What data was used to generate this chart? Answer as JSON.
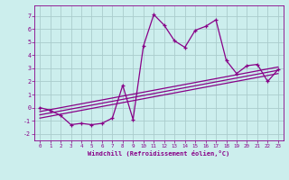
{
  "xlabel": "Windchill (Refroidissement éolien,°C)",
  "x": [
    0,
    1,
    2,
    3,
    4,
    5,
    6,
    7,
    8,
    9,
    10,
    11,
    12,
    13,
    14,
    15,
    16,
    17,
    18,
    19,
    20,
    21,
    22,
    23
  ],
  "y_main": [
    0.0,
    -0.2,
    -0.6,
    -1.3,
    -1.2,
    -1.3,
    -1.2,
    -0.8,
    1.7,
    -0.9,
    4.7,
    7.1,
    6.3,
    5.1,
    4.6,
    5.9,
    6.2,
    6.7,
    3.6,
    2.6,
    3.2,
    3.3,
    2.0,
    2.9
  ],
  "reg1_start": -0.8,
  "reg1_end": 2.6,
  "reg2_start": -0.55,
  "reg2_end": 2.85,
  "reg3_start": -0.3,
  "reg3_end": 3.1,
  "color": "#880088",
  "bg_color": "#cceeed",
  "grid_color": "#aacccc",
  "ylim": [
    -2.5,
    7.8
  ],
  "xlim": [
    -0.5,
    23.5
  ],
  "yticks": [
    -2,
    -1,
    0,
    1,
    2,
    3,
    4,
    5,
    6,
    7
  ],
  "xticks": [
    0,
    1,
    2,
    3,
    4,
    5,
    6,
    7,
    8,
    9,
    10,
    11,
    12,
    13,
    14,
    15,
    16,
    17,
    18,
    19,
    20,
    21,
    22,
    23
  ]
}
